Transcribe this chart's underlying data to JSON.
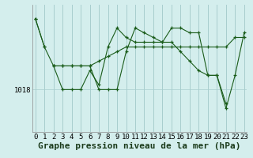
{
  "bg_color": "#d4eeed",
  "line_color": "#1a5c1a",
  "grid_color": "#a8cece",
  "xlabel": "Graphe pression niveau de la mer (hPa)",
  "ylabel_tick": "1018",
  "ylabel_value": 1018,
  "x_ticks": [
    0,
    1,
    2,
    3,
    4,
    5,
    6,
    7,
    8,
    9,
    10,
    11,
    12,
    13,
    14,
    15,
    16,
    17,
    18,
    19,
    20,
    21,
    22,
    23
  ],
  "series": [
    [
      1033,
      1027,
      null,
      null,
      null,
      null,
      null,
      null,
      null,
      null,
      null,
      null,
      null,
      null,
      null,
      null,
      null,
      null,
      null,
      null,
      null,
      null,
      null,
      null
    ],
    [
      1033,
      1027,
      1023,
      1018,
      1018,
      1018,
      1022,
      1019,
      1027,
      1031,
      1029,
      1028,
      1028,
      1028,
      1028,
      1028,
      1026,
      1024,
      1022,
      1021,
      1021,
      1015,
      null,
      null
    ],
    [
      null,
      null,
      1023,
      1023,
      1023,
      1023,
      1023,
      1024,
      1025,
      1026,
      1027,
      1027,
      1027,
      1027,
      1027,
      1027,
      1027,
      1027,
      1027,
      1027,
      1027,
      1027,
      1029,
      1029
    ],
    [
      null,
      null,
      1023,
      1023,
      1023,
      1023,
      1023,
      1018,
      1018,
      1018,
      1026,
      1031,
      1030,
      1029,
      1028,
      1031,
      1031,
      1030,
      1030,
      1021,
      1021,
      1014,
      1021,
      1030
    ]
  ],
  "xlim": [
    -0.3,
    23.3
  ],
  "ylim_bottom": 1009,
  "ylim_top": 1036,
  "tick_label_fontsize": 6.5,
  "xlabel_fontsize": 8,
  "figsize": [
    3.2,
    2.0
  ],
  "dpi": 100
}
